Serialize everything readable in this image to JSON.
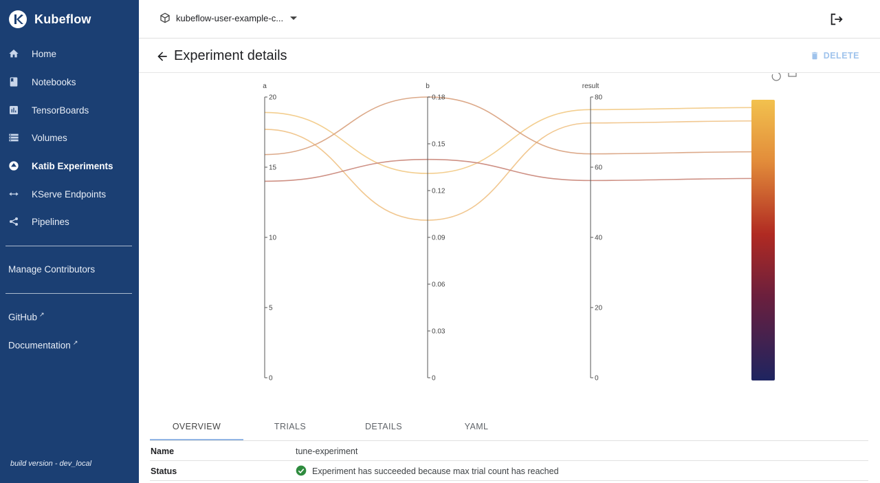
{
  "app": {
    "name": "Kubeflow"
  },
  "sidebar": {
    "items": [
      {
        "label": "Home",
        "icon": "home-icon"
      },
      {
        "label": "Notebooks",
        "icon": "book-icon"
      },
      {
        "label": "TensorBoards",
        "icon": "chart-icon"
      },
      {
        "label": "Volumes",
        "icon": "list-icon"
      },
      {
        "label": "Katib Experiments",
        "icon": "katib-icon",
        "active": true
      },
      {
        "label": "KServe Endpoints",
        "icon": "code-arrows-icon"
      },
      {
        "label": "Pipelines",
        "icon": "pipeline-icon"
      }
    ],
    "manage_contributors": "Manage Contributors",
    "github": "GitHub",
    "documentation": "Documentation",
    "build_version": "build version - dev_local"
  },
  "topbar": {
    "namespace": "kubeflow-user-example-c..."
  },
  "page": {
    "title": "Experiment details",
    "delete_label": "DELETE"
  },
  "chart_data": {
    "type": "parallel_coordinates",
    "dimensions": [
      {
        "label": "a",
        "range": [
          0,
          20
        ],
        "ticks": [
          "0",
          "5",
          "10",
          "15",
          "20"
        ]
      },
      {
        "label": "b",
        "range": [
          0,
          0.18
        ],
        "ticks": [
          "0",
          "0.03",
          "0.06",
          "0.09",
          "0.12",
          "0.15",
          "0.18"
        ]
      },
      {
        "label": "result",
        "range": [
          0,
          80
        ],
        "ticks": [
          "0",
          "20",
          "40",
          "60",
          "80"
        ]
      }
    ],
    "trials": [
      {
        "a": 18.9,
        "b": 0.131,
        "result": 76.4,
        "color": "#f2c983"
      },
      {
        "a": 17.7,
        "b": 0.101,
        "result": 72.6,
        "color": "#f0c184"
      },
      {
        "a": 15.9,
        "b": 0.18,
        "result": 63.8,
        "color": "#d8a07c"
      },
      {
        "a": 14.0,
        "b": 0.14,
        "result": 56.2,
        "color": "#c98477"
      }
    ],
    "colorscale": [
      "#f2c14e",
      "#e28c3a",
      "#b02a22",
      "#6b1f3d",
      "#1e2460"
    ]
  },
  "tabs": [
    "OVERVIEW",
    "TRIALS",
    "DETAILS",
    "YAML"
  ],
  "overview": {
    "name_label": "Name",
    "name_value": "tune-experiment",
    "status_label": "Status",
    "status_value": "Experiment has succeeded because max trial count has reached"
  }
}
